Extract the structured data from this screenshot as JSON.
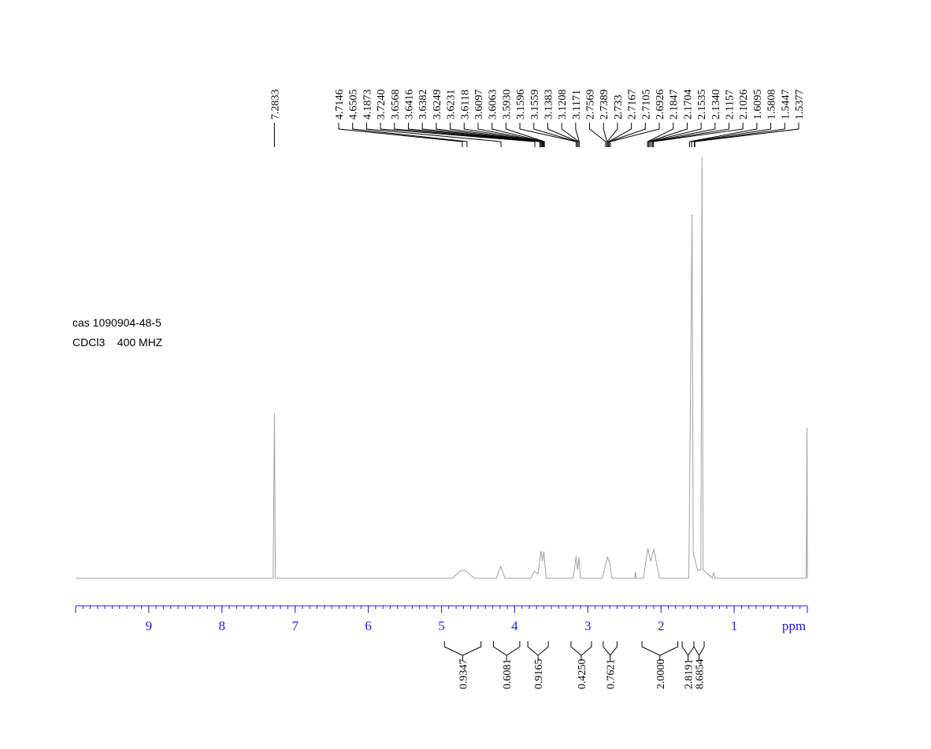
{
  "chart_data": {
    "type": "line",
    "annotations": [
      "cas 1090904-48-5",
      "CDCl3    400 MHZ"
    ],
    "xlabel": "ppm",
    "xlim": [
      10,
      0
    ],
    "xticks": [
      9,
      8,
      7,
      6,
      5,
      4,
      3,
      2,
      1
    ],
    "ylim": [
      0,
      100
    ],
    "color": "#a0a0a0",
    "axis_color": "#1c1ce0",
    "x": [
      10,
      7.3,
      7.283,
      7.27,
      4.85,
      4.75,
      4.7,
      4.65,
      4.55,
      4.25,
      4.19,
      4.13,
      3.78,
      3.73,
      3.68,
      3.64,
      3.62,
      3.6,
      3.57,
      3.2,
      3.16,
      3.14,
      3.12,
      3.1,
      2.8,
      2.76,
      2.73,
      2.7,
      2.67,
      2.36,
      2.35,
      2.34,
      2.24,
      2.18,
      2.14,
      2.1,
      2.02,
      1.62,
      1.575,
      1.56,
      1.545,
      1.5,
      1.455,
      1.44,
      1.425,
      1.3,
      1.28,
      1.26,
      0.015,
      0.003,
      0
    ],
    "values": [
      0,
      0,
      38.9,
      0,
      0,
      1.7,
      1.9,
      1.5,
      0,
      0,
      2.8,
      0,
      0,
      1.7,
      1,
      6.5,
      4,
      6.3,
      0,
      0,
      5.2,
      2,
      5,
      0,
      0,
      3,
      5,
      3.5,
      0,
      0,
      1.5,
      0,
      0,
      7,
      4,
      6.9,
      0,
      0,
      86,
      6,
      5,
      2,
      2,
      99.6,
      2,
      0,
      1.5,
      0,
      0,
      35.6,
      0
    ],
    "peaks": [
      7.2833,
      4.7146,
      4.6505,
      4.1873,
      {
        "value": 3.724,
        "label": "3.7240"
      },
      3.6568,
      3.6416,
      3.6382,
      3.6249,
      3.6231,
      3.6118,
      3.6097,
      3.6063,
      {
        "value": 3.593,
        "label": "3.5930"
      },
      3.1596,
      3.1559,
      3.1383,
      3.1208,
      3.1171,
      2.7569,
      2.7389,
      2.733,
      2.7167,
      2.7105,
      2.6926,
      2.1847,
      2.1704,
      2.1535,
      {
        "value": 2.134,
        "label": "2.1340"
      },
      2.1157,
      2.1026,
      1.6095,
      1.5808,
      1.5447,
      1.5377
    ],
    "integrals": [
      {
        "range": [
          4.96,
          4.46
        ],
        "value": 0.9347
      },
      {
        "range": [
          4.29,
          3.93
        ],
        "value": 0.6081
      },
      {
        "range": [
          3.82,
          3.54
        ],
        "value": 0.9165
      },
      {
        "range": [
          3.23,
          2.95
        ],
        "value": 0.425,
        "label": "0.4250"
      },
      {
        "range": [
          2.79,
          2.6
        ],
        "value": 0.7621
      },
      {
        "range": [
          2.26,
          1.77
        ],
        "value": 2,
        "label": "2.0000"
      },
      {
        "range": [
          1.71,
          1.55
        ],
        "value": 2.8191
      },
      {
        "range": [
          1.55,
          1.41
        ],
        "value": 8.6854
      }
    ]
  }
}
